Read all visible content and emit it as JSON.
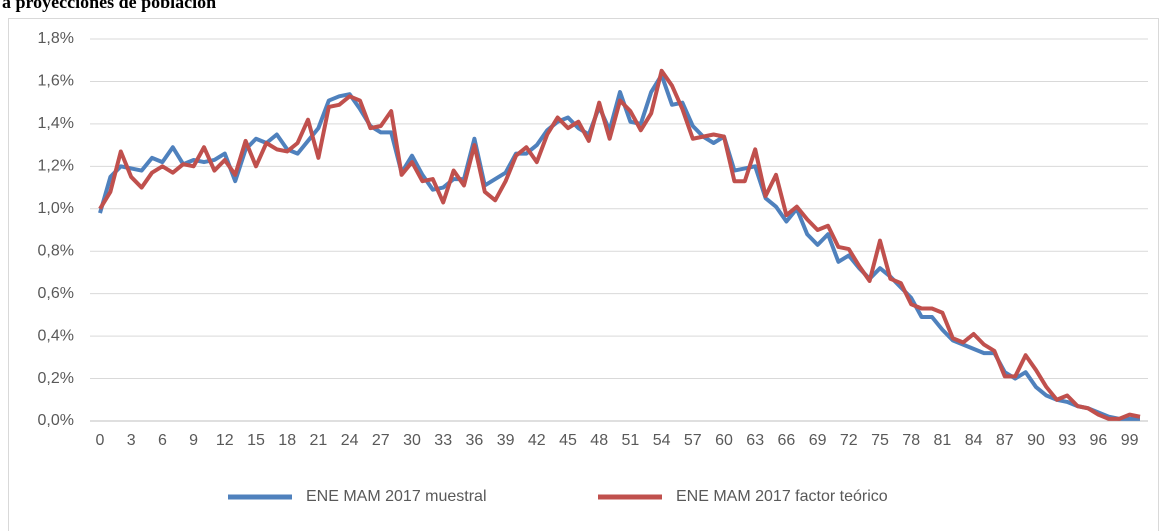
{
  "chart_data": {
    "type": "line",
    "title": "a proyecciones de población",
    "x": [
      0,
      1,
      2,
      3,
      4,
      5,
      6,
      7,
      8,
      9,
      10,
      11,
      12,
      13,
      14,
      15,
      16,
      17,
      18,
      19,
      20,
      21,
      22,
      23,
      24,
      25,
      26,
      27,
      28,
      29,
      30,
      31,
      32,
      33,
      34,
      35,
      36,
      37,
      38,
      39,
      40,
      41,
      42,
      43,
      44,
      45,
      46,
      47,
      48,
      49,
      50,
      51,
      52,
      53,
      54,
      55,
      56,
      57,
      58,
      59,
      60,
      61,
      62,
      63,
      64,
      65,
      66,
      67,
      68,
      69,
      70,
      71,
      72,
      73,
      74,
      75,
      76,
      77,
      78,
      79,
      80,
      81,
      82,
      83,
      84,
      85,
      86,
      87,
      88,
      89,
      90,
      91,
      92,
      93,
      94,
      95,
      96,
      97,
      98,
      99,
      100
    ],
    "xlim": [
      0,
      100
    ],
    "xticks": [
      0,
      3,
      6,
      9,
      12,
      15,
      18,
      21,
      24,
      27,
      30,
      33,
      36,
      39,
      42,
      45,
      48,
      51,
      54,
      57,
      60,
      63,
      66,
      69,
      72,
      75,
      78,
      81,
      84,
      87,
      90,
      93,
      96,
      99
    ],
    "ylim": [
      0,
      1.8
    ],
    "yticks": [
      {
        "value": 0,
        "label": "0,0%"
      },
      {
        "value": 0.2,
        "label": "0,2%"
      },
      {
        "value": 0.4,
        "label": "0,4%"
      },
      {
        "value": 0.6,
        "label": "0,6%"
      },
      {
        "value": 0.8,
        "label": "0,8%"
      },
      {
        "value": 1.0,
        "label": "1,0%"
      },
      {
        "value": 1.2,
        "label": "1,2%"
      },
      {
        "value": 1.4,
        "label": "1,4%"
      },
      {
        "value": 1.6,
        "label": "1,6%"
      },
      {
        "value": 1.8,
        "label": "1,8%"
      }
    ],
    "grid": true,
    "legend": "bottom",
    "series": [
      {
        "name": "ENE MAM 2017 muestral",
        "color": "#4f81bd",
        "values": [
          0.98,
          1.15,
          1.2,
          1.19,
          1.18,
          1.24,
          1.22,
          1.29,
          1.21,
          1.23,
          1.22,
          1.23,
          1.26,
          1.13,
          1.28,
          1.33,
          1.31,
          1.35,
          1.28,
          1.26,
          1.32,
          1.38,
          1.51,
          1.53,
          1.54,
          1.47,
          1.39,
          1.36,
          1.36,
          1.17,
          1.25,
          1.16,
          1.09,
          1.1,
          1.14,
          1.14,
          1.33,
          1.11,
          1.14,
          1.17,
          1.26,
          1.26,
          1.3,
          1.37,
          1.41,
          1.43,
          1.38,
          1.35,
          1.48,
          1.37,
          1.55,
          1.41,
          1.4,
          1.55,
          1.63,
          1.49,
          1.5,
          1.39,
          1.34,
          1.31,
          1.34,
          1.18,
          1.19,
          1.2,
          1.05,
          1.01,
          0.94,
          1.0,
          0.88,
          0.83,
          0.88,
          0.75,
          0.78,
          0.72,
          0.67,
          0.72,
          0.68,
          0.63,
          0.58,
          0.49,
          0.49,
          0.43,
          0.38,
          0.36,
          0.34,
          0.32,
          0.32,
          0.23,
          0.2,
          0.23,
          0.16,
          0.12,
          0.1,
          0.09,
          0.07,
          0.06,
          0.04,
          0.02,
          0.01,
          0.01,
          0.01
        ]
      },
      {
        "name": "ENE MAM 2017 factor teórico",
        "color": "#c0504d",
        "values": [
          1.0,
          1.08,
          1.27,
          1.15,
          1.1,
          1.17,
          1.2,
          1.17,
          1.21,
          1.2,
          1.29,
          1.18,
          1.23,
          1.16,
          1.32,
          1.2,
          1.31,
          1.28,
          1.27,
          1.31,
          1.42,
          1.24,
          1.48,
          1.49,
          1.53,
          1.51,
          1.38,
          1.39,
          1.46,
          1.16,
          1.22,
          1.13,
          1.14,
          1.03,
          1.18,
          1.11,
          1.3,
          1.08,
          1.04,
          1.13,
          1.25,
          1.29,
          1.22,
          1.35,
          1.43,
          1.38,
          1.41,
          1.32,
          1.5,
          1.33,
          1.51,
          1.46,
          1.37,
          1.45,
          1.65,
          1.58,
          1.47,
          1.33,
          1.34,
          1.35,
          1.34,
          1.13,
          1.13,
          1.28,
          1.06,
          1.16,
          0.97,
          1.01,
          0.95,
          0.9,
          0.92,
          0.82,
          0.81,
          0.73,
          0.66,
          0.85,
          0.67,
          0.65,
          0.55,
          0.53,
          0.53,
          0.51,
          0.39,
          0.37,
          0.41,
          0.36,
          0.33,
          0.21,
          0.21,
          0.31,
          0.24,
          0.16,
          0.1,
          0.12,
          0.07,
          0.06,
          0.03,
          0.01,
          0.01,
          0.03,
          0.02
        ]
      }
    ]
  }
}
